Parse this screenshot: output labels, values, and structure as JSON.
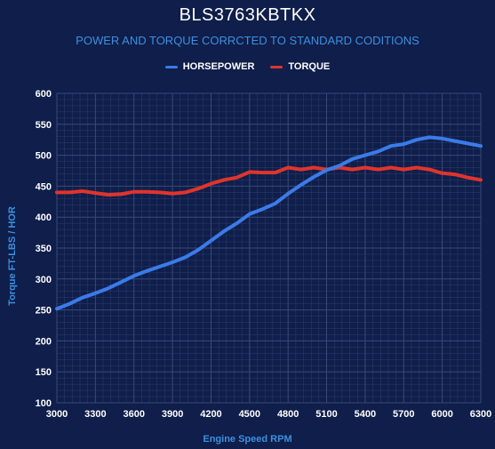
{
  "chart_data": {
    "type": "line",
    "title": "BLS3763KBTKX",
    "subtitle": "POWER AND TORQUE CORRCTED TO STANDARD CODITIONS",
    "xlabel": "Engine Speed RPM",
    "ylabel": "Torque FT-LBS / HOR",
    "xlim": [
      3000,
      6300
    ],
    "ylim": [
      100,
      600
    ],
    "x_ticks": [
      3000,
      3300,
      3600,
      3900,
      4200,
      4500,
      4800,
      5100,
      5400,
      5700,
      6000,
      6300
    ],
    "x_tick_labels": [
      "3000",
      "3300",
      "3600",
      "3900",
      "4200",
      "4500",
      "4800",
      "5100",
      "5400",
      "5700",
      "6000",
      "6300"
    ],
    "y_ticks": [
      100,
      150,
      200,
      250,
      300,
      350,
      400,
      450,
      500,
      550,
      600
    ],
    "y_tick_labels": [
      "100",
      "150",
      "200",
      "250",
      "300",
      "350",
      "400",
      "450",
      "500",
      "550",
      "600"
    ],
    "grid": true,
    "legend_position": "top-center",
    "x": [
      3000,
      3100,
      3200,
      3300,
      3400,
      3500,
      3600,
      3700,
      3800,
      3900,
      4000,
      4100,
      4200,
      4300,
      4400,
      4500,
      4600,
      4700,
      4800,
      4900,
      5000,
      5100,
      5200,
      5300,
      5400,
      5500,
      5600,
      5700,
      5800,
      5900,
      6000,
      6100,
      6200,
      6300
    ],
    "series": [
      {
        "name": "HORSEPOWER",
        "color": "#3b7be8",
        "values": [
          252,
          260,
          270,
          277,
          285,
          295,
          305,
          313,
          320,
          327,
          335,
          347,
          362,
          377,
          390,
          405,
          413,
          422,
          438,
          452,
          465,
          476,
          483,
          494,
          500,
          506,
          515,
          518,
          525,
          529,
          527,
          523,
          519,
          515
        ]
      },
      {
        "name": "TORQUE",
        "color": "#e0342c",
        "values": [
          440,
          440,
          442,
          439,
          436,
          437,
          441,
          441,
          440,
          438,
          440,
          446,
          454,
          460,
          464,
          473,
          472,
          472,
          480,
          477,
          480,
          477,
          480,
          477,
          480,
          477,
          480,
          477,
          480,
          477,
          471,
          469,
          464,
          460
        ]
      }
    ]
  },
  "colors": {
    "background": "#0f1e4a",
    "grid": "#3a4a78",
    "accent_text": "#3d8fe0"
  }
}
